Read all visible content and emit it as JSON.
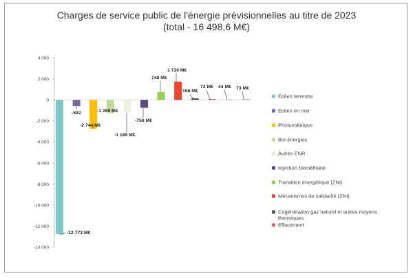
{
  "chart_data": {
    "type": "bar",
    "title": "Charges de service public de l'énergie prévisionnelles au titre de 2023",
    "subtitle": "(total - 16 498,6 M€)",
    "ylim": [
      -14000,
      4000
    ],
    "y_ticks": [
      "4 000",
      "2 000",
      "0",
      "-2 000",
      "-4 000",
      "-6 000",
      "-8 000",
      "-10 000",
      "-12 000",
      "-14 000"
    ],
    "y_tick_values": [
      4000,
      2000,
      0,
      -2000,
      -4000,
      -6000,
      -8000,
      -10000,
      -12000,
      -14000
    ],
    "grid": false,
    "legend_position": "right",
    "series": [
      {
        "name": "Eolien terrestre",
        "value": -12773,
        "label": "-12 773 M€",
        "color": "#7ec8c9"
      },
      {
        "name": "Eolien en mer",
        "value": -592,
        "label": "-592",
        "color": "#8064a2"
      },
      {
        "name": "Photovoltaïque",
        "value": -2744,
        "label": "-2 744 M€",
        "color": "#ffc000"
      },
      {
        "name": "Bio-énergies",
        "value": -1269,
        "label": "-1 269 M€",
        "color": "#c3d69b"
      },
      {
        "name": "Autres ENR",
        "value": -1189,
        "label": "-1 189 M€",
        "color": "#ebf1de"
      },
      {
        "name": "Injection biométhane",
        "value": -756,
        "label": "-756 M€",
        "color": "#604a7b"
      },
      {
        "name": "Transition énergétique (ZNI)",
        "value": 748,
        "label": "748 M€",
        "color": "#92d050"
      },
      {
        "name": "Mécanismes de solidarité (ZNI)",
        "value": 1730,
        "label": "1 730 M€",
        "color": "#e8452f"
      },
      {
        "name": "Cogénération gaz naturel et autres moyens thermiques",
        "value": 158,
        "label": "158 M€",
        "color": "#595959"
      },
      {
        "name": "Effacement",
        "value": 72,
        "label": "72 M€",
        "color": "#e06666"
      },
      {
        "name": "",
        "value": 44,
        "label": "44 M€",
        "color": "#d9a0a0"
      },
      {
        "name": "",
        "value": 73,
        "label": "73 M€",
        "color": "#c9b8b8"
      }
    ]
  }
}
